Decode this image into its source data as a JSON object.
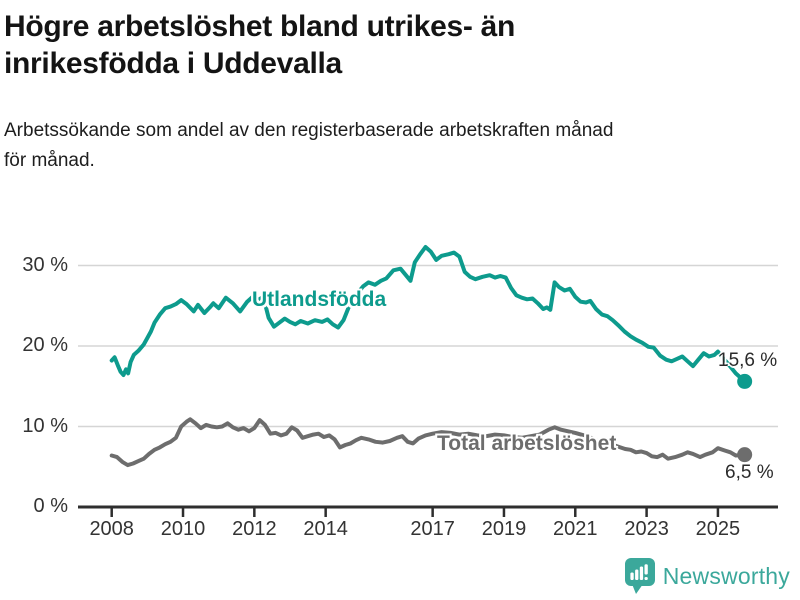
{
  "header": {
    "title_lines": [
      "Högre arbetslöshet bland utrikes- än",
      "inrikesfödda i Uddevalla"
    ],
    "subtitle_lines": [
      "Arbetssökande som andel av den registerbaserade arbetskraften månad",
      "för månad."
    ]
  },
  "footer": {
    "brand": "Newsworthy",
    "logo_icon": "bar-chart-speech-bubble",
    "brand_color": "#3BA89B"
  },
  "colors": {
    "utlandsfodda": "#0D9B8D",
    "total": "#6D6D6D",
    "grid": "#D5D5D5",
    "axis": "#2E2E2E",
    "tick_text": "#333333",
    "end_label_text": "#2B2B2B"
  },
  "chart_data": {
    "type": "line",
    "title": "Högre arbetslöshet bland utrikes- än inrikesfödda i Uddevalla",
    "subtitle": "Arbetssökande som andel av den registerbaserade arbetskraften månad för månad.",
    "x_axis": {
      "tick_values": [
        2008,
        2010,
        2012,
        2014,
        2017,
        2019,
        2021,
        2023,
        2025
      ],
      "tick_labels": [
        "2008",
        "2010",
        "2012",
        "2014",
        "2017",
        "2019",
        "2021",
        "2023",
        "2025"
      ],
      "range": [
        2007.05,
        2026.7
      ]
    },
    "y_axis": {
      "tick_values": [
        0,
        10,
        20,
        30
      ],
      "tick_labels": [
        "0 %",
        "10 %",
        "20 %",
        "30 %"
      ],
      "range": [
        0,
        33
      ],
      "grid": true
    },
    "legend_position": "inline-labels",
    "series": [
      {
        "name": "Utlandsfödda",
        "color": "#0D9B8D",
        "end_label": "15,6 %",
        "end_value": 15.6,
        "points": [
          [
            2008.0,
            18.2
          ],
          [
            2008.08,
            18.6
          ],
          [
            2008.17,
            17.6
          ],
          [
            2008.25,
            16.8
          ],
          [
            2008.33,
            16.4
          ],
          [
            2008.4,
            17.1
          ],
          [
            2008.46,
            16.6
          ],
          [
            2008.53,
            18.0
          ],
          [
            2008.62,
            18.9
          ],
          [
            2008.75,
            19.4
          ],
          [
            2008.9,
            20.2
          ],
          [
            2009.0,
            21.0
          ],
          [
            2009.1,
            21.8
          ],
          [
            2009.2,
            22.9
          ],
          [
            2009.35,
            23.9
          ],
          [
            2009.5,
            24.7
          ],
          [
            2009.65,
            24.9
          ],
          [
            2009.8,
            25.2
          ],
          [
            2009.95,
            25.7
          ],
          [
            2010.1,
            25.2
          ],
          [
            2010.3,
            24.3
          ],
          [
            2010.42,
            25.1
          ],
          [
            2010.6,
            24.1
          ],
          [
            2010.75,
            24.8
          ],
          [
            2010.85,
            25.3
          ],
          [
            2011.0,
            24.7
          ],
          [
            2011.2,
            26.0
          ],
          [
            2011.4,
            25.3
          ],
          [
            2011.6,
            24.3
          ],
          [
            2011.8,
            25.5
          ],
          [
            2011.95,
            26.1
          ],
          [
            2012.1,
            25.7
          ],
          [
            2012.25,
            26.1
          ],
          [
            2012.4,
            23.5
          ],
          [
            2012.55,
            22.4
          ],
          [
            2012.7,
            22.9
          ],
          [
            2012.85,
            23.4
          ],
          [
            2013.0,
            23.0
          ],
          [
            2013.15,
            22.7
          ],
          [
            2013.3,
            23.1
          ],
          [
            2013.5,
            22.8
          ],
          [
            2013.7,
            23.2
          ],
          [
            2013.9,
            23.0
          ],
          [
            2014.05,
            23.3
          ],
          [
            2014.2,
            22.7
          ],
          [
            2014.35,
            22.3
          ],
          [
            2014.5,
            23.2
          ],
          [
            2014.7,
            25.4
          ],
          [
            2014.9,
            26.6
          ],
          [
            2015.05,
            27.4
          ],
          [
            2015.2,
            27.9
          ],
          [
            2015.38,
            27.6
          ],
          [
            2015.55,
            28.1
          ],
          [
            2015.7,
            28.4
          ],
          [
            2015.9,
            29.4
          ],
          [
            2016.1,
            29.6
          ],
          [
            2016.25,
            28.8
          ],
          [
            2016.38,
            28.1
          ],
          [
            2016.5,
            30.4
          ],
          [
            2016.65,
            31.4
          ],
          [
            2016.8,
            32.3
          ],
          [
            2016.95,
            31.7
          ],
          [
            2017.1,
            30.7
          ],
          [
            2017.25,
            31.2
          ],
          [
            2017.45,
            31.4
          ],
          [
            2017.6,
            31.6
          ],
          [
            2017.75,
            31.1
          ],
          [
            2017.9,
            29.2
          ],
          [
            2018.05,
            28.6
          ],
          [
            2018.2,
            28.3
          ],
          [
            2018.4,
            28.6
          ],
          [
            2018.6,
            28.8
          ],
          [
            2018.75,
            28.5
          ],
          [
            2018.9,
            28.7
          ],
          [
            2019.05,
            28.5
          ],
          [
            2019.2,
            27.2
          ],
          [
            2019.35,
            26.3
          ],
          [
            2019.5,
            26.0
          ],
          [
            2019.65,
            25.8
          ],
          [
            2019.8,
            25.9
          ],
          [
            2019.95,
            25.3
          ],
          [
            2020.1,
            24.6
          ],
          [
            2020.2,
            24.8
          ],
          [
            2020.3,
            24.5
          ],
          [
            2020.42,
            27.9
          ],
          [
            2020.55,
            27.3
          ],
          [
            2020.7,
            26.9
          ],
          [
            2020.85,
            27.1
          ],
          [
            2021.0,
            26.1
          ],
          [
            2021.15,
            25.5
          ],
          [
            2021.3,
            25.4
          ],
          [
            2021.42,
            25.6
          ],
          [
            2021.58,
            24.6
          ],
          [
            2021.75,
            23.9
          ],
          [
            2021.9,
            23.7
          ],
          [
            2022.05,
            23.2
          ],
          [
            2022.2,
            22.6
          ],
          [
            2022.38,
            21.8
          ],
          [
            2022.55,
            21.2
          ],
          [
            2022.7,
            20.8
          ],
          [
            2022.88,
            20.4
          ],
          [
            2023.05,
            19.9
          ],
          [
            2023.2,
            19.8
          ],
          [
            2023.38,
            18.8
          ],
          [
            2023.55,
            18.3
          ],
          [
            2023.7,
            18.1
          ],
          [
            2023.85,
            18.4
          ],
          [
            2024.0,
            18.7
          ],
          [
            2024.15,
            18.1
          ],
          [
            2024.3,
            17.5
          ],
          [
            2024.45,
            18.3
          ],
          [
            2024.6,
            19.1
          ],
          [
            2024.75,
            18.7
          ],
          [
            2024.9,
            18.9
          ],
          [
            2025.0,
            19.3
          ],
          [
            2025.15,
            18.5
          ],
          [
            2025.3,
            17.7
          ],
          [
            2025.5,
            16.6
          ],
          [
            2025.75,
            15.6
          ]
        ]
      },
      {
        "name": "Total arbetslöshet",
        "color": "#6D6D6D",
        "end_label": "6,5 %",
        "end_value": 6.5,
        "points": [
          [
            2008.0,
            6.4
          ],
          [
            2008.15,
            6.2
          ],
          [
            2008.3,
            5.6
          ],
          [
            2008.45,
            5.2
          ],
          [
            2008.6,
            5.4
          ],
          [
            2008.75,
            5.7
          ],
          [
            2008.9,
            6.0
          ],
          [
            2009.05,
            6.6
          ],
          [
            2009.2,
            7.1
          ],
          [
            2009.35,
            7.4
          ],
          [
            2009.5,
            7.8
          ],
          [
            2009.65,
            8.1
          ],
          [
            2009.8,
            8.6
          ],
          [
            2009.95,
            10.0
          ],
          [
            2010.1,
            10.6
          ],
          [
            2010.2,
            10.9
          ],
          [
            2010.35,
            10.4
          ],
          [
            2010.5,
            9.8
          ],
          [
            2010.65,
            10.2
          ],
          [
            2010.8,
            10.0
          ],
          [
            2010.95,
            9.9
          ],
          [
            2011.1,
            10.0
          ],
          [
            2011.25,
            10.4
          ],
          [
            2011.4,
            9.9
          ],
          [
            2011.55,
            9.6
          ],
          [
            2011.7,
            9.8
          ],
          [
            2011.85,
            9.4
          ],
          [
            2012.0,
            9.8
          ],
          [
            2012.15,
            10.8
          ],
          [
            2012.3,
            10.2
          ],
          [
            2012.45,
            9.1
          ],
          [
            2012.6,
            9.2
          ],
          [
            2012.75,
            8.9
          ],
          [
            2012.9,
            9.1
          ],
          [
            2013.05,
            9.9
          ],
          [
            2013.2,
            9.5
          ],
          [
            2013.35,
            8.6
          ],
          [
            2013.5,
            8.8
          ],
          [
            2013.65,
            9.0
          ],
          [
            2013.8,
            9.1
          ],
          [
            2013.95,
            8.7
          ],
          [
            2014.1,
            8.9
          ],
          [
            2014.25,
            8.4
          ],
          [
            2014.4,
            7.4
          ],
          [
            2014.55,
            7.7
          ],
          [
            2014.7,
            7.9
          ],
          [
            2014.85,
            8.3
          ],
          [
            2015.0,
            8.6
          ],
          [
            2015.2,
            8.4
          ],
          [
            2015.4,
            8.1
          ],
          [
            2015.6,
            8.0
          ],
          [
            2015.8,
            8.2
          ],
          [
            2016.0,
            8.6
          ],
          [
            2016.15,
            8.8
          ],
          [
            2016.3,
            8.1
          ],
          [
            2016.45,
            7.9
          ],
          [
            2016.6,
            8.5
          ],
          [
            2016.8,
            8.9
          ],
          [
            2017.0,
            9.1
          ],
          [
            2017.25,
            9.3
          ],
          [
            2017.5,
            9.2
          ],
          [
            2017.75,
            9.0
          ],
          [
            2018.0,
            9.1
          ],
          [
            2018.25,
            8.9
          ],
          [
            2018.5,
            8.8
          ],
          [
            2018.75,
            9.0
          ],
          [
            2019.0,
            8.9
          ],
          [
            2019.25,
            8.7
          ],
          [
            2019.5,
            8.6
          ],
          [
            2019.75,
            8.8
          ],
          [
            2020.0,
            9.0
          ],
          [
            2020.25,
            9.6
          ],
          [
            2020.42,
            9.9
          ],
          [
            2020.6,
            9.6
          ],
          [
            2020.8,
            9.4
          ],
          [
            2021.0,
            9.2
          ],
          [
            2021.25,
            8.9
          ],
          [
            2021.5,
            8.5
          ],
          [
            2021.75,
            8.1
          ],
          [
            2022.0,
            7.8
          ],
          [
            2022.2,
            7.5
          ],
          [
            2022.4,
            7.2
          ],
          [
            2022.55,
            7.1
          ],
          [
            2022.7,
            6.8
          ],
          [
            2022.85,
            6.9
          ],
          [
            2023.0,
            6.7
          ],
          [
            2023.15,
            6.3
          ],
          [
            2023.3,
            6.2
          ],
          [
            2023.45,
            6.5
          ],
          [
            2023.6,
            6.0
          ],
          [
            2023.8,
            6.2
          ],
          [
            2024.0,
            6.5
          ],
          [
            2024.15,
            6.8
          ],
          [
            2024.3,
            6.6
          ],
          [
            2024.5,
            6.2
          ],
          [
            2024.65,
            6.5
          ],
          [
            2024.85,
            6.8
          ],
          [
            2025.0,
            7.3
          ],
          [
            2025.2,
            7.0
          ],
          [
            2025.35,
            6.8
          ],
          [
            2025.5,
            6.4
          ],
          [
            2025.75,
            6.5
          ]
        ]
      }
    ]
  }
}
